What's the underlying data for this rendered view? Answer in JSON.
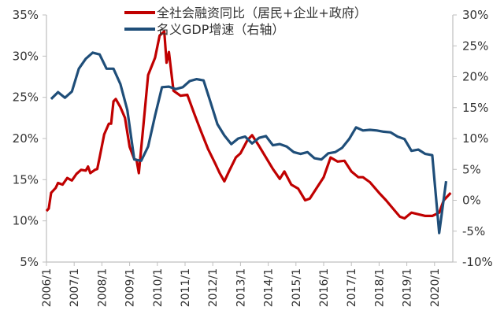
{
  "chart_data": {
    "type": "line",
    "title": "",
    "legend_position": "top",
    "grid": false,
    "left_axis": {
      "ylim": [
        5,
        35
      ],
      "ticks": [
        "5%",
        "10%",
        "15%",
        "20%",
        "25%",
        "30%",
        "35%"
      ]
    },
    "right_axis": {
      "ylim": [
        -10,
        30
      ],
      "ticks": [
        "-10%",
        "-5%",
        "0%",
        "5%",
        "10%",
        "15%",
        "20%",
        "25%",
        "30%"
      ]
    },
    "x_ticks": [
      "2006/1",
      "2007/1",
      "2008/1",
      "2009/1",
      "2010/1",
      "2011/1",
      "2012/1",
      "2013/1",
      "2014/1",
      "2015/1",
      "2016/1",
      "2017/1",
      "2018/1",
      "2019/1",
      "2020/1"
    ],
    "series": [
      {
        "name": "全社会融资同比（居民+企业+政府）",
        "axis": "left",
        "color": "#C00000",
        "points": [
          [
            "2006/1",
            11.2
          ],
          [
            "2006/2",
            11.5
          ],
          [
            "2006/3",
            13.4
          ],
          [
            "2006/5",
            14.0
          ],
          [
            "2006/6",
            14.6
          ],
          [
            "2006/8",
            14.4
          ],
          [
            "2006/10",
            15.2
          ],
          [
            "2006/12",
            14.9
          ],
          [
            "2007/2",
            15.7
          ],
          [
            "2007/4",
            16.2
          ],
          [
            "2007/6",
            16.1
          ],
          [
            "2007/7",
            16.6
          ],
          [
            "2007/8",
            15.8
          ],
          [
            "2007/10",
            16.2
          ],
          [
            "2007/11",
            16.3
          ],
          [
            "2007/12",
            17.7
          ],
          [
            "2008/2",
            20.5
          ],
          [
            "2008/4",
            21.8
          ],
          [
            "2008/5",
            21.8
          ],
          [
            "2008/6",
            24.5
          ],
          [
            "2008/7",
            24.8
          ],
          [
            "2008/9",
            23.8
          ],
          [
            "2008/11",
            22.5
          ],
          [
            "2009/1",
            19.0
          ],
          [
            "2009/3",
            17.5
          ],
          [
            "2009/4",
            17.4
          ],
          [
            "2009/5",
            15.8
          ],
          [
            "2009/7",
            21.7
          ],
          [
            "2009/9",
            27.7
          ],
          [
            "2009/12",
            29.8
          ],
          [
            "2010/2",
            32.5
          ],
          [
            "2010/4",
            33.0
          ],
          [
            "2010/5",
            29.2
          ],
          [
            "2010/6",
            30.5
          ],
          [
            "2010/8",
            25.8
          ],
          [
            "2010/11",
            25.2
          ],
          [
            "2011/2",
            25.3
          ],
          [
            "2011/5",
            23.0
          ],
          [
            "2011/8",
            20.8
          ],
          [
            "2011/11",
            18.7
          ],
          [
            "2012/2",
            17.0
          ],
          [
            "2012/4",
            15.8
          ],
          [
            "2012/6",
            14.8
          ],
          [
            "2012/8",
            16.0
          ],
          [
            "2012/11",
            17.7
          ],
          [
            "2013/1",
            18.2
          ],
          [
            "2013/4",
            19.8
          ],
          [
            "2013/6",
            20.4
          ],
          [
            "2013/9",
            19.1
          ],
          [
            "2013/12",
            17.7
          ],
          [
            "2014/3",
            16.3
          ],
          [
            "2014/6",
            15.1
          ],
          [
            "2014/8",
            16.0
          ],
          [
            "2014/11",
            14.4
          ],
          [
            "2015/2",
            13.9
          ],
          [
            "2015/5",
            12.5
          ],
          [
            "2015/7",
            12.7
          ],
          [
            "2015/10",
            14.0
          ],
          [
            "2016/1",
            15.3
          ],
          [
            "2016/4",
            17.7
          ],
          [
            "2016/7",
            17.2
          ],
          [
            "2016/10",
            17.3
          ],
          [
            "2017/1",
            16.0
          ],
          [
            "2017/4",
            15.3
          ],
          [
            "2017/6",
            15.3
          ],
          [
            "2017/9",
            14.7
          ],
          [
            "2018/1",
            13.4
          ],
          [
            "2018/4",
            12.5
          ],
          [
            "2018/7",
            11.5
          ],
          [
            "2018/10",
            10.5
          ],
          [
            "2018/12",
            10.3
          ],
          [
            "2019/3",
            11.0
          ],
          [
            "2019/6",
            10.8
          ],
          [
            "2019/9",
            10.6
          ],
          [
            "2019/12",
            10.6
          ],
          [
            "2020/3",
            11.0
          ],
          [
            "2020/5",
            12.5
          ],
          [
            "2020/8",
            13.4
          ]
        ]
      },
      {
        "name": "名义GDP增速（右轴）",
        "axis": "right",
        "color": "#1F4E79",
        "points": [
          [
            "2006/3",
            16.4
          ],
          [
            "2006/6",
            17.5
          ],
          [
            "2006/9",
            16.6
          ],
          [
            "2006/12",
            17.6
          ],
          [
            "2007/3",
            21.3
          ],
          [
            "2007/6",
            22.9
          ],
          [
            "2007/9",
            23.9
          ],
          [
            "2007/12",
            23.6
          ],
          [
            "2008/3",
            21.3
          ],
          [
            "2008/6",
            21.3
          ],
          [
            "2008/9",
            18.8
          ],
          [
            "2008/12",
            14.6
          ],
          [
            "2009/3",
            6.6
          ],
          [
            "2009/6",
            6.4
          ],
          [
            "2009/9",
            8.7
          ],
          [
            "2009/12",
            13.7
          ],
          [
            "2010/3",
            18.3
          ],
          [
            "2010/6",
            18.4
          ],
          [
            "2010/9",
            18.0
          ],
          [
            "2010/12",
            18.3
          ],
          [
            "2011/3",
            19.3
          ],
          [
            "2011/6",
            19.6
          ],
          [
            "2011/9",
            19.4
          ],
          [
            "2011/12",
            15.9
          ],
          [
            "2012/3",
            12.3
          ],
          [
            "2012/6",
            10.5
          ],
          [
            "2012/9",
            9.1
          ],
          [
            "2012/12",
            10.0
          ],
          [
            "2013/3",
            10.3
          ],
          [
            "2013/6",
            9.2
          ],
          [
            "2013/9",
            10.1
          ],
          [
            "2013/12",
            10.4
          ],
          [
            "2014/3",
            8.9
          ],
          [
            "2014/6",
            9.1
          ],
          [
            "2014/9",
            8.7
          ],
          [
            "2014/12",
            7.8
          ],
          [
            "2015/3",
            7.5
          ],
          [
            "2015/6",
            7.8
          ],
          [
            "2015/9",
            6.8
          ],
          [
            "2015/12",
            6.6
          ],
          [
            "2016/3",
            7.6
          ],
          [
            "2016/6",
            7.8
          ],
          [
            "2016/9",
            8.5
          ],
          [
            "2016/12",
            9.9
          ],
          [
            "2017/3",
            11.8
          ],
          [
            "2017/6",
            11.3
          ],
          [
            "2017/9",
            11.4
          ],
          [
            "2017/12",
            11.3
          ],
          [
            "2018/3",
            11.1
          ],
          [
            "2018/6",
            11.0
          ],
          [
            "2018/9",
            10.3
          ],
          [
            "2018/12",
            9.9
          ],
          [
            "2019/3",
            8.0
          ],
          [
            "2019/6",
            8.2
          ],
          [
            "2019/9",
            7.5
          ],
          [
            "2019/12",
            7.3
          ],
          [
            "2020/3",
            -5.3
          ],
          [
            "2020/6",
            3.1
          ]
        ]
      }
    ]
  }
}
